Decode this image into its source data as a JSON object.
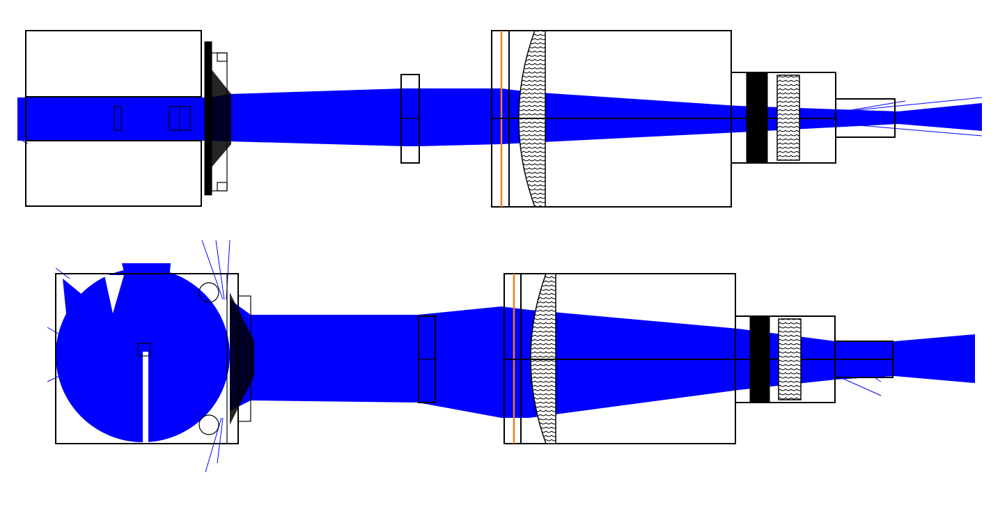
{
  "figure": {
    "panels": [
      {
        "id": "top",
        "kind": "optical-ray-trace-side-view"
      },
      {
        "id": "bottom",
        "kind": "optical-ray-trace-side-view"
      }
    ],
    "colors": {
      "rays": "#0000ff",
      "outline": "#000000",
      "filter_line": "#ee7f1a",
      "background": "#ffffff"
    }
  }
}
